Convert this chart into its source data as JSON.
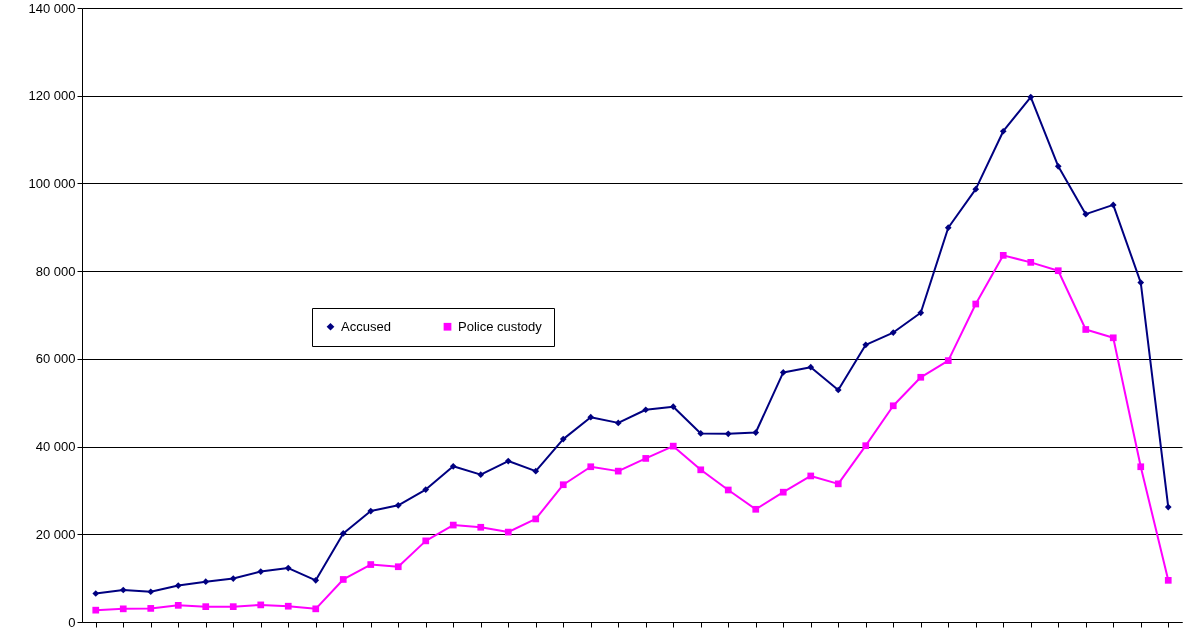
{
  "chart_data": {
    "type": "line",
    "categories": [
      null,
      null,
      null,
      null,
      null,
      null,
      null,
      null,
      null,
      null,
      null,
      null,
      null,
      null,
      null,
      null,
      null,
      null,
      null,
      null,
      null,
      null,
      null,
      null,
      null,
      null,
      null,
      null,
      null,
      null,
      null,
      null,
      null,
      null,
      null,
      null,
      null,
      null,
      null,
      null
    ],
    "series": [
      {
        "name": "Accused",
        "color": "#000080",
        "marker": "diamond",
        "values": [
          6500,
          7300,
          6900,
          8300,
          9200,
          9900,
          11500,
          12300,
          9500,
          20200,
          25300,
          26600,
          30200,
          35500,
          33600,
          36700,
          34400,
          41700,
          46700,
          45400,
          48400,
          49100,
          43000,
          42900,
          43200,
          56900,
          58100,
          52900,
          63200,
          66000,
          70500,
          89900,
          98700,
          111900,
          119700,
          103900,
          93000,
          95100,
          77400,
          26200
        ]
      },
      {
        "name": "Police custody",
        "color": "#ff00ff",
        "marker": "square",
        "values": [
          2700,
          3000,
          3100,
          3800,
          3500,
          3500,
          3900,
          3600,
          3000,
          9700,
          13100,
          12600,
          18500,
          22100,
          21600,
          20500,
          23500,
          31300,
          35400,
          34400,
          37300,
          40100,
          34700,
          30100,
          25700,
          29600,
          33300,
          31500,
          40200,
          49300,
          55800,
          59600,
          72500,
          83600,
          82000,
          80100,
          66700,
          64800,
          35400,
          9500
        ]
      }
    ],
    "ylim": [
      0,
      140000
    ],
    "yticks": [
      0,
      {
        "value": 20000,
        "label": "20 000"
      },
      {
        "value": 40000,
        "label": "40 000"
      },
      {
        "value": 60000,
        "label": "60 000"
      },
      {
        "value": 80000,
        "label": "80 000"
      },
      {
        "value": 100000,
        "label": "100 000"
      },
      {
        "value": 120000,
        "label": "120 000"
      },
      {
        "value": 140000,
        "label": "140 000"
      }
    ],
    "grid": "y",
    "legend": "left",
    "tick_labels": "y"
  }
}
